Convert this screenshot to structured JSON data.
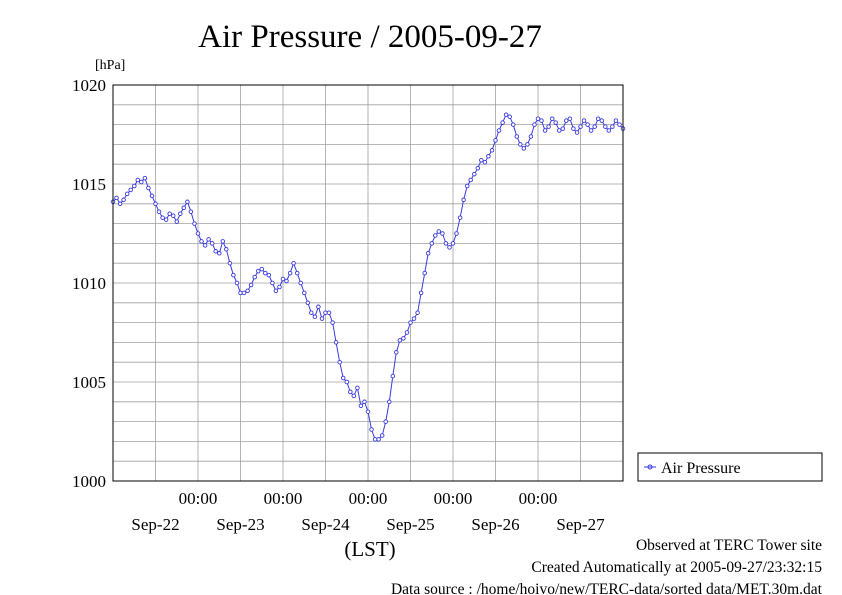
{
  "chart_data": {
    "type": "line",
    "title": "Air Pressure / 2005-09-27",
    "ylabel_unit": "[hPa]",
    "xlabel": "(LST)",
    "ylim": [
      1000,
      1020
    ],
    "yticks": [
      "1000",
      "1005",
      "1010",
      "1015",
      "1020"
    ],
    "xlim_hours": [
      0,
      144
    ],
    "x_time_labels": [
      "00:00",
      "00:00",
      "00:00",
      "00:00",
      "00:00"
    ],
    "x_date_labels": [
      "Sep-22",
      "Sep-23",
      "Sep-24",
      "Sep-25",
      "Sep-26",
      "Sep-27"
    ],
    "grid": true,
    "legend_position": "right",
    "series": [
      {
        "name": "Air Pressure",
        "color": "#3a3ae0",
        "marker": "circle",
        "points": [
          [
            0,
            1014.1
          ],
          [
            1,
            1014.3
          ],
          [
            2,
            1014.0
          ],
          [
            3,
            1014.2
          ],
          [
            4,
            1014.5
          ],
          [
            5,
            1014.7
          ],
          [
            6,
            1014.9
          ],
          [
            7,
            1015.2
          ],
          [
            8,
            1015.1
          ],
          [
            9,
            1015.3
          ],
          [
            10,
            1014.8
          ],
          [
            11,
            1014.4
          ],
          [
            12,
            1014.0
          ],
          [
            13,
            1013.6
          ],
          [
            14,
            1013.3
          ],
          [
            15,
            1013.2
          ],
          [
            16,
            1013.5
          ],
          [
            17,
            1013.4
          ],
          [
            18,
            1013.1
          ],
          [
            19,
            1013.5
          ],
          [
            20,
            1013.8
          ],
          [
            21,
            1014.1
          ],
          [
            22,
            1013.6
          ],
          [
            23,
            1013.0
          ],
          [
            24,
            1012.5
          ],
          [
            25,
            1012.1
          ],
          [
            26,
            1011.9
          ],
          [
            27,
            1012.2
          ],
          [
            28,
            1012.0
          ],
          [
            29,
            1011.6
          ],
          [
            30,
            1011.5
          ],
          [
            31,
            1012.1
          ],
          [
            32,
            1011.7
          ],
          [
            33,
            1011.0
          ],
          [
            34,
            1010.4
          ],
          [
            35,
            1010.0
          ],
          [
            36,
            1009.5
          ],
          [
            37,
            1009.5
          ],
          [
            38,
            1009.6
          ],
          [
            39,
            1009.9
          ],
          [
            40,
            1010.3
          ],
          [
            41,
            1010.6
          ],
          [
            42,
            1010.7
          ],
          [
            43,
            1010.5
          ],
          [
            44,
            1010.4
          ],
          [
            45,
            1010.0
          ],
          [
            46,
            1009.6
          ],
          [
            47,
            1009.8
          ],
          [
            48,
            1010.2
          ],
          [
            49,
            1010.1
          ],
          [
            50,
            1010.5
          ],
          [
            51,
            1011.0
          ],
          [
            52,
            1010.5
          ],
          [
            53,
            1010.0
          ],
          [
            54,
            1009.5
          ],
          [
            55,
            1009.0
          ],
          [
            56,
            1008.5
          ],
          [
            57,
            1008.3
          ],
          [
            58,
            1008.8
          ],
          [
            59,
            1008.2
          ],
          [
            60,
            1008.5
          ],
          [
            61,
            1008.5
          ],
          [
            62,
            1008.0
          ],
          [
            63,
            1007.0
          ],
          [
            64,
            1006.0
          ],
          [
            65,
            1005.2
          ],
          [
            66,
            1005.0
          ],
          [
            67,
            1004.5
          ],
          [
            68,
            1004.3
          ],
          [
            69,
            1004.7
          ],
          [
            70,
            1003.8
          ],
          [
            71,
            1004.0
          ],
          [
            72,
            1003.5
          ],
          [
            73,
            1002.6
          ],
          [
            74,
            1002.1
          ],
          [
            75,
            1002.1
          ],
          [
            76,
            1002.3
          ],
          [
            77,
            1003.0
          ],
          [
            78,
            1004.0
          ],
          [
            79,
            1005.3
          ],
          [
            80,
            1006.5
          ],
          [
            81,
            1007.1
          ],
          [
            82,
            1007.2
          ],
          [
            83,
            1007.5
          ],
          [
            84,
            1008.0
          ],
          [
            85,
            1008.2
          ],
          [
            86,
            1008.5
          ],
          [
            87,
            1009.5
          ],
          [
            88,
            1010.5
          ],
          [
            89,
            1011.5
          ],
          [
            90,
            1012.0
          ],
          [
            91,
            1012.4
          ],
          [
            92,
            1012.6
          ],
          [
            93,
            1012.5
          ],
          [
            94,
            1012.0
          ],
          [
            95,
            1011.8
          ],
          [
            96,
            1012.0
          ],
          [
            97,
            1012.5
          ],
          [
            98,
            1013.3
          ],
          [
            99,
            1014.2
          ],
          [
            100,
            1014.9
          ],
          [
            101,
            1015.2
          ],
          [
            102,
            1015.5
          ],
          [
            103,
            1015.8
          ],
          [
            104,
            1016.2
          ],
          [
            105,
            1016.1
          ],
          [
            106,
            1016.4
          ],
          [
            107,
            1016.7
          ],
          [
            108,
            1017.2
          ],
          [
            109,
            1017.7
          ],
          [
            110,
            1018.1
          ],
          [
            111,
            1018.5
          ],
          [
            112,
            1018.4
          ],
          [
            113,
            1018.0
          ],
          [
            114,
            1017.4
          ],
          [
            115,
            1017.0
          ],
          [
            116,
            1016.8
          ],
          [
            117,
            1017.0
          ],
          [
            118,
            1017.4
          ],
          [
            119,
            1018.0
          ],
          [
            120,
            1018.3
          ],
          [
            121,
            1018.2
          ],
          [
            122,
            1017.7
          ],
          [
            123,
            1017.9
          ],
          [
            124,
            1018.3
          ],
          [
            125,
            1018.1
          ],
          [
            126,
            1017.7
          ],
          [
            127,
            1017.8
          ],
          [
            128,
            1018.2
          ],
          [
            129,
            1018.3
          ],
          [
            130,
            1017.8
          ],
          [
            131,
            1017.6
          ],
          [
            132,
            1017.9
          ],
          [
            133,
            1018.2
          ],
          [
            134,
            1018.0
          ],
          [
            135,
            1017.7
          ],
          [
            136,
            1017.9
          ],
          [
            137,
            1018.3
          ],
          [
            138,
            1018.2
          ],
          [
            139,
            1017.9
          ],
          [
            140,
            1017.7
          ],
          [
            141,
            1017.9
          ],
          [
            142,
            1018.2
          ],
          [
            143,
            1018.0
          ],
          [
            144,
            1017.8
          ]
        ]
      }
    ]
  },
  "footer": {
    "line1": "Observed at TERC Tower site",
    "line2": "Created Automatically at 2005-09-27/23:32:15",
    "line3": "Data source : /home/hoivo/new/TERC-data/sorted  data/MET.30m.dat"
  }
}
